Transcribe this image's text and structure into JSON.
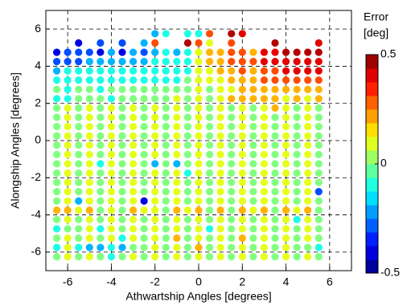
{
  "chart_data": {
    "type": "scatter",
    "xlabel": "Athwartship Angles [degrees]",
    "ylabel": "Alongship Angles [degrees]",
    "colorbar_label": [
      "Error",
      "[deg]"
    ],
    "xlim": [
      -7,
      7
    ],
    "ylim": [
      -7,
      7
    ],
    "xticks": [
      -6,
      -4,
      -2,
      0,
      2,
      4,
      6
    ],
    "yticks": [
      -6,
      -4,
      -2,
      0,
      2,
      4,
      6
    ],
    "grid": true,
    "colormap": "jet",
    "clim": [
      -0.5,
      0.5
    ],
    "cticks": [
      -0.5,
      0,
      0.5
    ],
    "x": [
      -6.5,
      -6,
      -5.5,
      -5,
      -4.5,
      -4,
      -3.5,
      -3,
      -2.5,
      -2,
      -1.5,
      -1,
      -0.5,
      0,
      0.5,
      1,
      1.5,
      2,
      2.5,
      3,
      3.5,
      4,
      4.5,
      5,
      5.5
    ],
    "y": [
      -6.25,
      -5.75,
      -5.25,
      -4.75,
      -4.25,
      -3.75,
      -3.25,
      -2.75,
      -2.25,
      -1.75,
      -1.25,
      -0.75,
      -0.25,
      0.25,
      0.75,
      1.25,
      1.75,
      2.25,
      2.75,
      3.25,
      3.75,
      4.25,
      4.75,
      5.25,
      5.75
    ],
    "values": [
      [
        0,
        0.1,
        0,
        0.1,
        0,
        -0.1,
        0,
        0.1,
        0,
        0.1,
        0,
        0.1,
        0,
        0.1,
        0,
        0.1,
        0,
        0.1,
        0,
        0.1,
        0,
        0.1,
        0,
        0.1,
        0
      ],
      [
        -0.1,
        0.1,
        -0.1,
        -0.2,
        -0.2,
        -0.1,
        -0.2,
        0,
        0,
        0.1,
        0,
        0.1,
        0,
        0.2,
        0,
        0.1,
        0,
        0.1,
        0,
        0.1,
        0,
        0.1,
        0,
        0,
        -0.1
      ],
      [
        0,
        0.1,
        0,
        0.1,
        0,
        0.1,
        -0.1,
        0.1,
        0,
        0.1,
        0,
        0.2,
        0,
        0.1,
        0,
        0.1,
        0,
        0.2,
        0,
        0.1,
        0,
        0.1,
        0,
        0.1,
        0
      ],
      [
        -0.1,
        0,
        0,
        0.1,
        -0.1,
        0.1,
        0,
        0.1,
        0,
        0.1,
        0,
        0.1,
        0,
        0.1,
        -0.1,
        0.1,
        0,
        0.1,
        0,
        0.1,
        0,
        0.1,
        0,
        0.1,
        0
      ],
      [
        0,
        0.1,
        0,
        0.1,
        0,
        0.1,
        0,
        0.1,
        0,
        0.1,
        0,
        0.1,
        0,
        0.1,
        0,
        0.1,
        0,
        0.1,
        0,
        0.1,
        0,
        0.1,
        -0.1,
        0.1,
        0
      ],
      [
        0.2,
        0.2,
        0.1,
        0.2,
        0,
        0.1,
        0,
        0.2,
        0.1,
        0.1,
        0,
        0.2,
        0.1,
        0.2,
        0,
        0.2,
        0,
        0.2,
        0.1,
        0.2,
        0,
        0.2,
        0.1,
        0.2,
        0
      ],
      [
        0,
        0.1,
        -0.2,
        0.1,
        0,
        0.1,
        0,
        0.1,
        -0.4,
        0.1,
        0,
        0.1,
        0,
        0.1,
        0,
        0.1,
        0,
        0.1,
        0,
        0.1,
        0,
        0.1,
        0,
        0.1,
        0
      ],
      [
        0,
        0.1,
        0,
        0.1,
        0,
        0.1,
        0,
        0.1,
        0,
        0.1,
        0,
        0.1,
        0,
        0.1,
        0,
        0.1,
        0,
        0.1,
        0,
        0.1,
        0,
        0.1,
        0,
        0.1,
        -0.3
      ],
      [
        0,
        0.1,
        0,
        0.1,
        0,
        0.1,
        0,
        0.1,
        0,
        0.1,
        0,
        0.1,
        0,
        0.1,
        0,
        0.1,
        0,
        0.1,
        0,
        0.1,
        0,
        0.1,
        0,
        0.1,
        0
      ],
      [
        0,
        0.1,
        0,
        0.1,
        0,
        0.1,
        0,
        0.1,
        0,
        0.1,
        0,
        0.1,
        -0.1,
        0.1,
        0,
        0.1,
        0,
        0.1,
        0,
        0.1,
        0,
        0.1,
        0,
        0.1,
        0
      ],
      [
        0,
        0.1,
        0,
        0.1,
        -0.1,
        0.1,
        0,
        0.1,
        0,
        -0.2,
        0,
        -0.2,
        0,
        0.1,
        0,
        0.1,
        0,
        0.1,
        0,
        0.1,
        0,
        0.1,
        0,
        0.1,
        0
      ],
      [
        0,
        0.1,
        0,
        0.1,
        0,
        0.1,
        0,
        0.1,
        0,
        0.1,
        0,
        0.1,
        0,
        0.1,
        0,
        0.1,
        0,
        0.1,
        0,
        0.1,
        0,
        0.1,
        0,
        0.1,
        0
      ],
      [
        0,
        0.1,
        0,
        0.1,
        0,
        0.1,
        0,
        0.1,
        0,
        0.1,
        0,
        0.1,
        0,
        0.1,
        0,
        0.1,
        0,
        0.1,
        0,
        0.1,
        0,
        0.1,
        0,
        0.1,
        0
      ],
      [
        0,
        0.1,
        0,
        0.1,
        0,
        0.1,
        0,
        0.1,
        0,
        0.1,
        0,
        0.1,
        0,
        0.1,
        0,
        0.1,
        0,
        0.1,
        0,
        0.1,
        0,
        0.1,
        0,
        0.1,
        0
      ],
      [
        0,
        0.1,
        0,
        0.1,
        0,
        0.1,
        0,
        0.1,
        0,
        0.1,
        0,
        0.1,
        0,
        0.1,
        0,
        0.1,
        0,
        0.1,
        0,
        0.1,
        0,
        0.1,
        0,
        0.1,
        0
      ],
      [
        0,
        0.1,
        0,
        0.1,
        0,
        0.1,
        0,
        0.1,
        0,
        0.1,
        0,
        0.1,
        0,
        0.1,
        0,
        0.1,
        0,
        0.1,
        0,
        0.1,
        0,
        0.1,
        0,
        0.1,
        0
      ],
      [
        0,
        0.1,
        0,
        0.1,
        0,
        0.1,
        0,
        0.1,
        0,
        0.1,
        0,
        0.1,
        0,
        0.1,
        0,
        0.1,
        0,
        0.1,
        0,
        0.1,
        0.2,
        0.1,
        0,
        0.1,
        0
      ],
      [
        -0.1,
        -0.1,
        0,
        0,
        0,
        -0.1,
        0,
        0,
        0,
        0,
        0,
        0.1,
        0,
        0.1,
        0,
        0.1,
        0.2,
        0.2,
        0.2,
        0.2,
        0.2,
        0.1,
        0.2,
        0.1,
        0.2
      ],
      [
        0,
        -0.1,
        0,
        0,
        -0.1,
        0,
        0,
        0,
        0,
        0,
        0,
        0,
        0,
        0.1,
        0,
        0.1,
        0.1,
        0.2,
        0.2,
        0.2,
        0.2,
        0.2,
        0.2,
        0.2,
        0.2
      ],
      [
        -0.1,
        -0.1,
        -0.1,
        -0.1,
        -0.1,
        -0.1,
        -0.1,
        -0.1,
        -0.1,
        -0.1,
        -0.1,
        -0.1,
        0,
        0.1,
        0.1,
        0.1,
        0.2,
        0.2,
        0.2,
        0.3,
        0.3,
        0.3,
        0.3,
        0.3,
        0.3
      ],
      [
        -0.2,
        -0.1,
        -0.1,
        -0.1,
        -0.1,
        -0.1,
        -0.1,
        -0.1,
        -0.1,
        -0.1,
        -0.1,
        -0.1,
        -0.1,
        0.1,
        0.1,
        0.2,
        0.2,
        0.3,
        0.2,
        0.3,
        0.3,
        0.4,
        0.4,
        0.4,
        0.4
      ],
      [
        -0.3,
        -0.3,
        -0.3,
        -0.2,
        -0.2,
        -0.2,
        -0.2,
        -0.2,
        -0.2,
        -0.1,
        -0.1,
        -0.1,
        -0.1,
        0.1,
        0.2,
        0.2,
        0.3,
        0.3,
        0.3,
        0.4,
        0.4,
        0.4,
        0.4,
        0.4,
        0.4
      ],
      [
        -0.4,
        -0.3,
        -0.3,
        -0.3,
        -0.4,
        -0.2,
        -0.4,
        -0.2,
        -0.3,
        -0.2,
        -0.1,
        -0.2,
        -0.1,
        0.1,
        0.2,
        0.2,
        0.3,
        0.3,
        0.2,
        0.4,
        0.4,
        0.45,
        0.45,
        0.45,
        0.45
      ],
      [
        null,
        null,
        -0.4,
        null,
        -0.3,
        null,
        -0.3,
        null,
        -0.2,
        0.3,
        null,
        null,
        0.45,
        0.3,
        0.1,
        null,
        0.3,
        null,
        null,
        null,
        0.45,
        null,
        null,
        null,
        0.4
      ],
      [
        null,
        null,
        null,
        null,
        null,
        null,
        null,
        null,
        null,
        -0.2,
        -0.1,
        null,
        -0.1,
        -0.1,
        0.3,
        null,
        0.45,
        0.4,
        null,
        null,
        null,
        null,
        null,
        null,
        null
      ]
    ]
  }
}
